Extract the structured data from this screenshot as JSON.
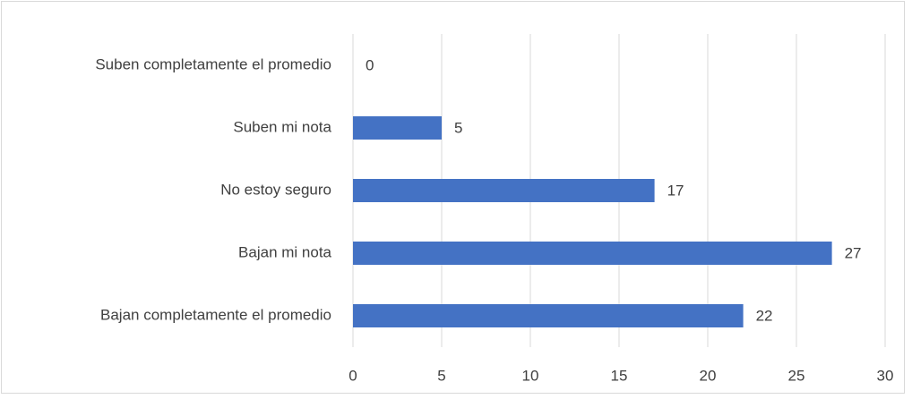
{
  "chart_data": {
    "type": "bar",
    "orientation": "horizontal",
    "categories": [
      "Suben completamente el promedio",
      "Suben mi nota",
      "No estoy seguro",
      "Bajan mi nota",
      "Bajan completamente el promedio"
    ],
    "values": [
      0,
      5,
      17,
      27,
      22
    ],
    "color": "#4472c4",
    "xlim": [
      0,
      30
    ],
    "xticks": [
      0,
      5,
      10,
      15,
      20,
      25,
      30
    ],
    "grid": true
  }
}
